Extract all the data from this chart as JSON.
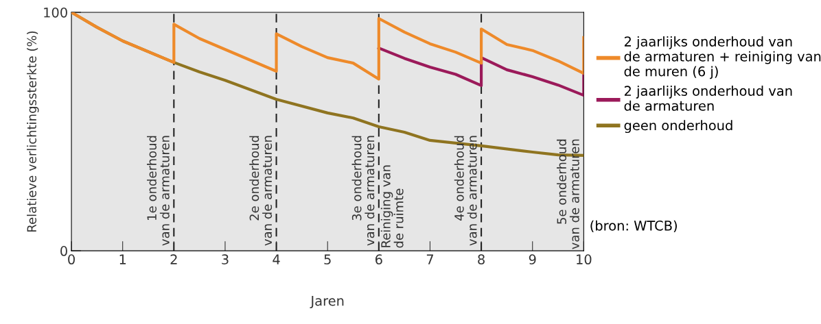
{
  "chart_data": {
    "type": "line",
    "xlabel": "Jaren",
    "ylabel": "Relatieve verlichtingssterkte (%)",
    "xlim": [
      0,
      10
    ],
    "ylim": [
      0,
      100
    ],
    "xticks": [
      0,
      1,
      2,
      3,
      4,
      5,
      6,
      7,
      8,
      9,
      10
    ],
    "yticks": [
      0,
      100
    ],
    "grid": false,
    "legend": "right",
    "marker": "none",
    "line_style": "solid",
    "series": [
      {
        "name": "geen onderhoud",
        "color": "#8f7420",
        "x": [
          0,
          0.5,
          1,
          2,
          2.5,
          3,
          4,
          5,
          5.5,
          6,
          6.5,
          7,
          8,
          9,
          9.5,
          10
        ],
        "values": [
          100,
          93.7,
          88,
          79,
          75,
          71.5,
          63.5,
          57.8,
          55.7,
          52,
          49.7,
          46.3,
          44,
          41.4,
          40.2,
          40
        ]
      },
      {
        "name": "2 jaarlijks onderhoud van\nde armaturen",
        "color": "#9b1a5a",
        "x": [
          6,
          6.5,
          7,
          7.5,
          8,
          8,
          8.5,
          9,
          9.5,
          10,
          10
        ],
        "values": [
          85,
          80.7,
          77,
          74,
          69.3,
          81,
          75.9,
          73,
          69.5,
          65.2,
          74.1
        ]
      },
      {
        "name": "2 jaarlijks onderhoud van\nde armaturen + reiniging van\nde muren (6 j)",
        "color": "#ee8a2a",
        "x": [
          0,
          0.5,
          1,
          2,
          2,
          2.5,
          4,
          4,
          4.5,
          5,
          5.5,
          6,
          6,
          6.5,
          7,
          7.5,
          8,
          8,
          8.5,
          9,
          9.5,
          10,
          10
        ],
        "values": [
          100,
          93.7,
          88,
          79,
          95,
          89,
          75.3,
          91,
          85.6,
          81,
          78.7,
          72,
          97.4,
          91.7,
          86.8,
          83.3,
          78.7,
          93,
          86.5,
          84,
          79.6,
          74.4,
          89.4
        ]
      }
    ],
    "ref_lines": [
      {
        "axis": "x",
        "value": 2,
        "label": "1e onderhoud\nvan de armaturen",
        "line_style": "dashed",
        "color": "#222222"
      },
      {
        "axis": "x",
        "value": 4,
        "label": "2e onderhoud\nvan de armaturen",
        "line_style": "dashed",
        "color": "#222222"
      },
      {
        "axis": "x",
        "value": 6,
        "label": "3e onderhoud\nvan de armaturen",
        "line_style": "dashed",
        "color": "#222222"
      },
      {
        "axis": "x",
        "value": 8,
        "label": "4e onderhoud\nvan de armaturen",
        "line_style": "dashed",
        "color": "#222222"
      }
    ],
    "annotations": [
      {
        "text": "Reiniging van\nde ruimte",
        "x": 6,
        "y": 1
      },
      "5e onderhoud\nvan de armaturen",
      "(bron: WTCB)"
    ]
  }
}
